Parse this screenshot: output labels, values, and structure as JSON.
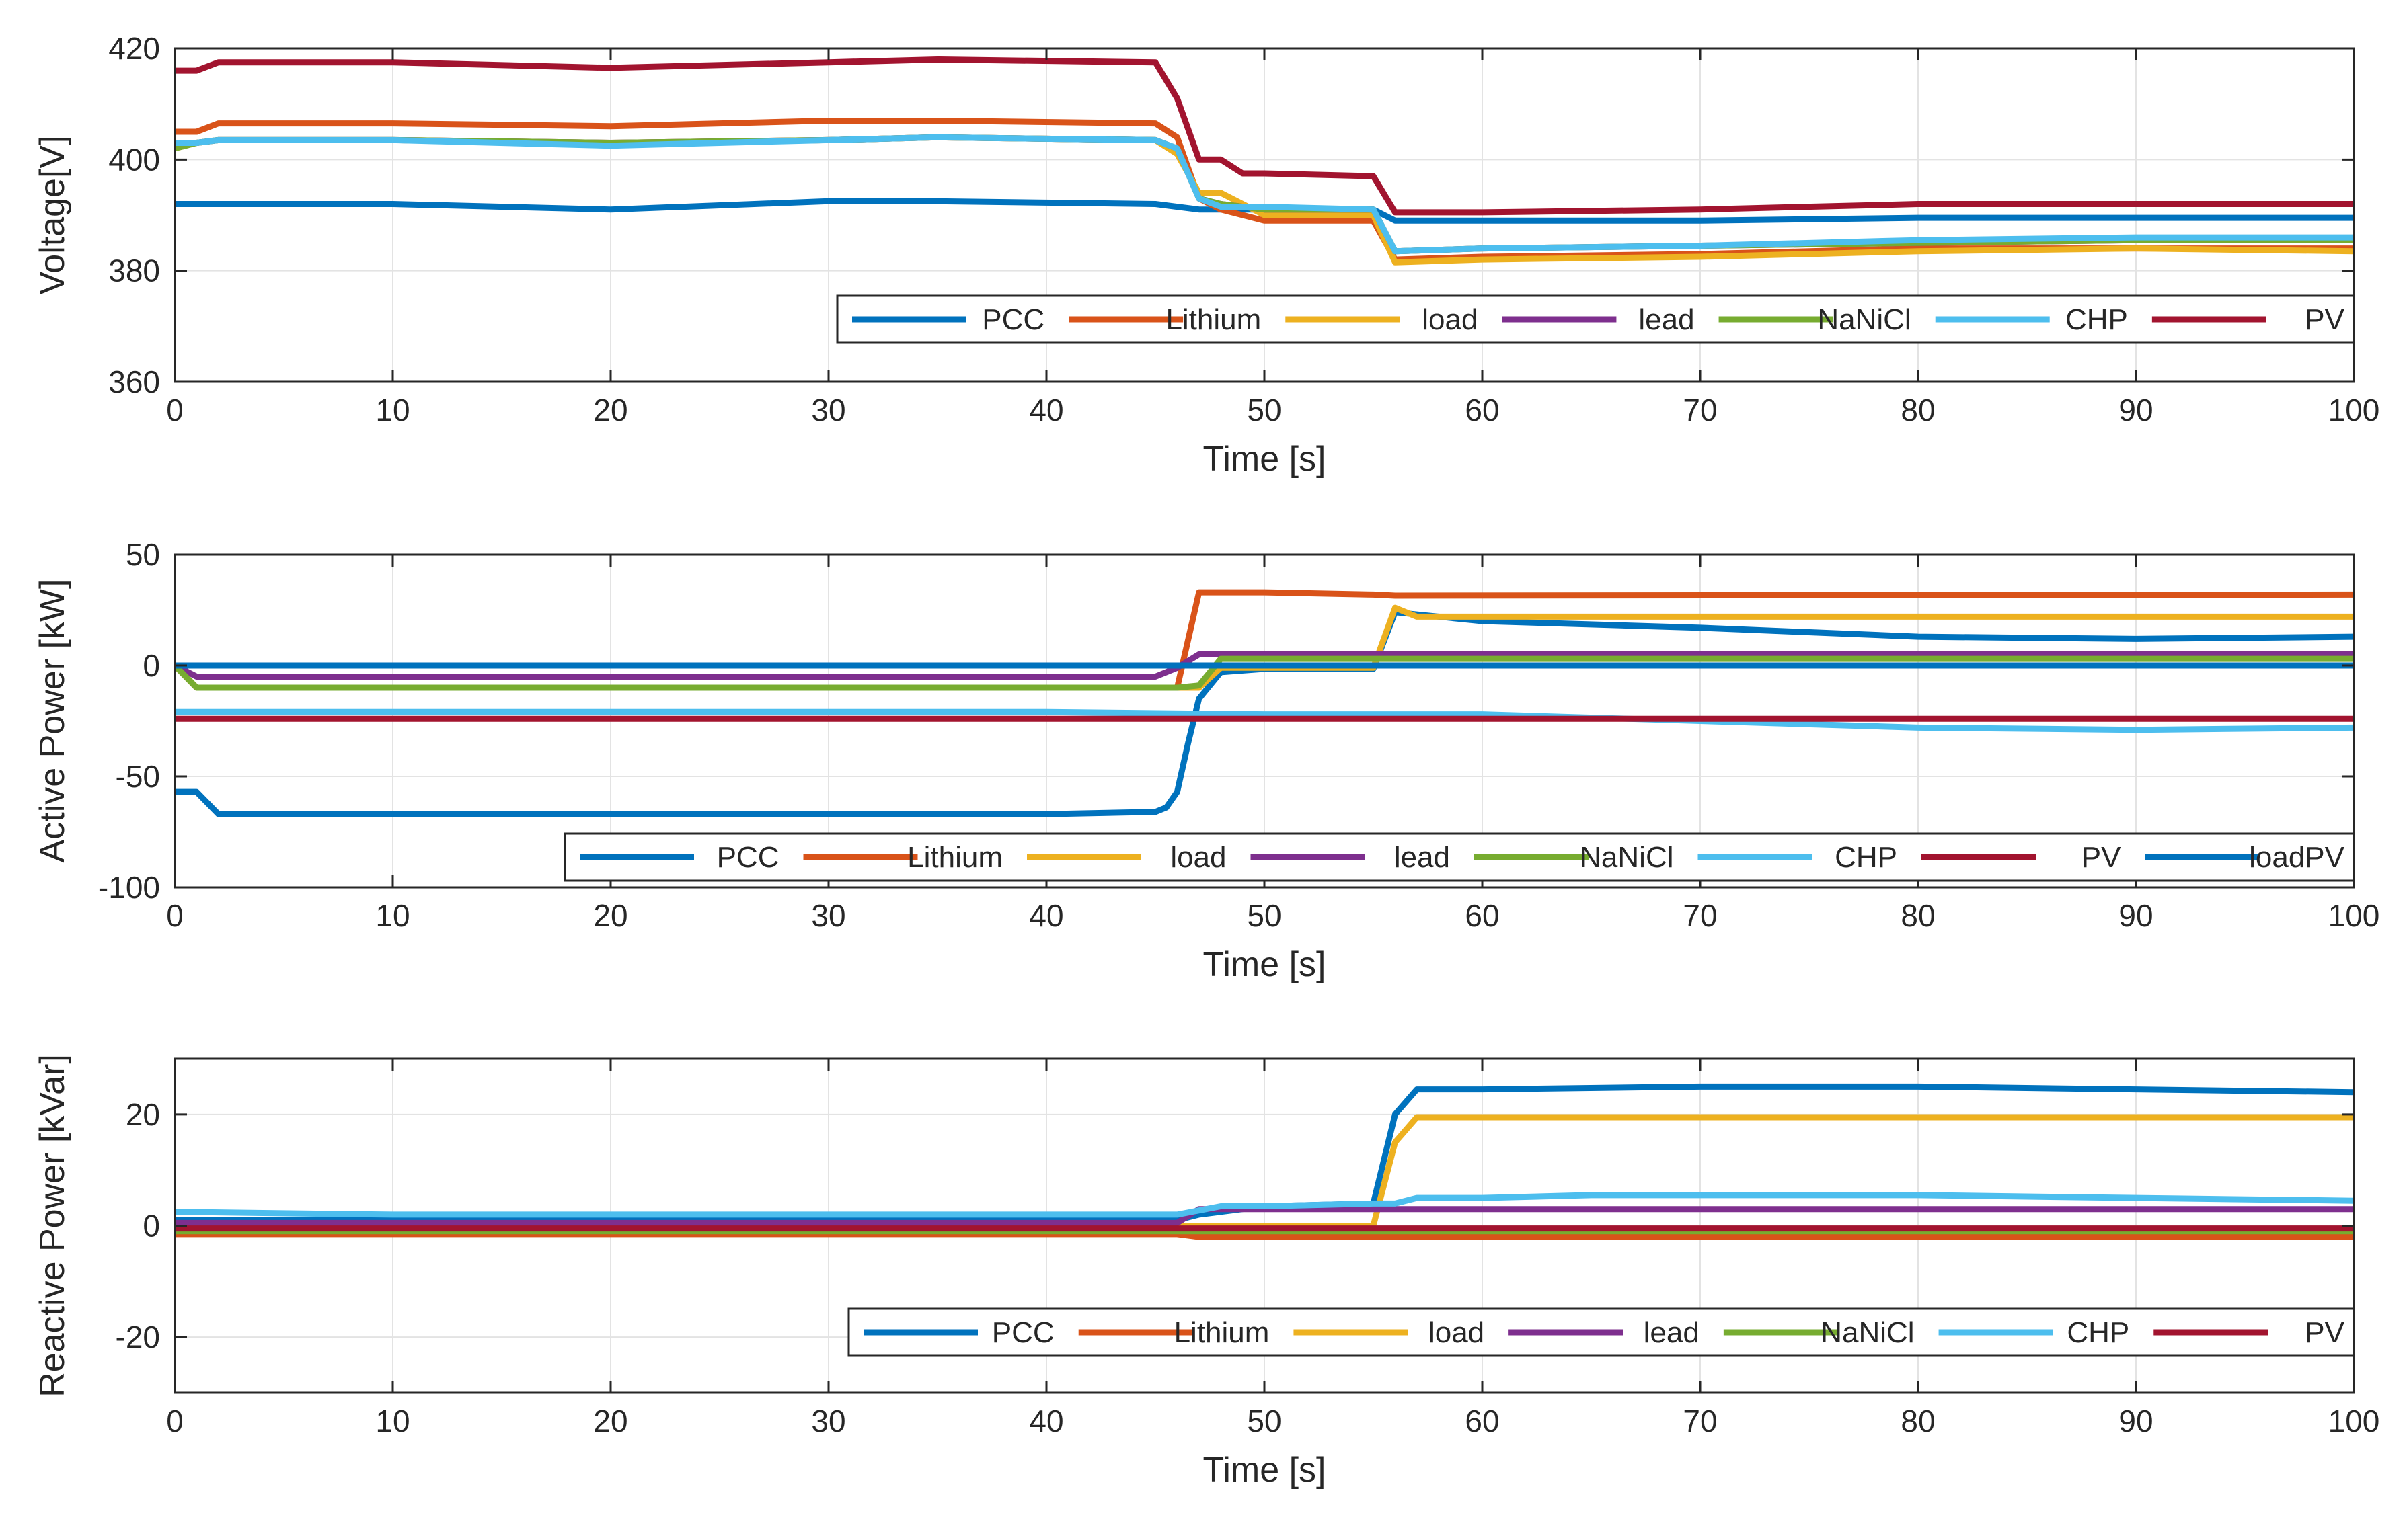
{
  "chart_data": [
    {
      "type": "line",
      "xlabel": "Time [s]",
      "ylabel": "Voltage[V]",
      "xlim": [
        0,
        100
      ],
      "ylim": [
        360,
        420
      ],
      "xticks": [
        0,
        10,
        20,
        30,
        40,
        50,
        60,
        70,
        80,
        90,
        100
      ],
      "yticks": [
        360,
        380,
        400,
        420
      ],
      "grid": true,
      "legend_position": "bottom-right",
      "legend_columns": 7,
      "series": [
        {
          "name": "PCC",
          "color": "#0072BD",
          "x": [
            0,
            10,
            20,
            30,
            35,
            45,
            46,
            47,
            48,
            50,
            55,
            56,
            60,
            70,
            80,
            90,
            100
          ],
          "y": [
            392,
            392,
            391,
            392.5,
            392.5,
            392,
            391.5,
            391,
            391,
            391,
            391,
            389,
            389,
            389,
            389.5,
            389.5,
            389.5
          ]
        },
        {
          "name": "Lithium",
          "color": "#D95319",
          "x": [
            0,
            1,
            2,
            10,
            20,
            30,
            35,
            45,
            46,
            47,
            48,
            50,
            55,
            56,
            60,
            70,
            80,
            90,
            100
          ],
          "y": [
            405,
            405,
            406.5,
            406.5,
            406,
            407,
            407,
            406.5,
            404,
            393,
            391,
            389,
            389,
            382,
            382.5,
            383,
            384,
            384,
            384
          ]
        },
        {
          "name": "load",
          "color": "#EDB120",
          "x": [
            0,
            1,
            2,
            10,
            20,
            30,
            35,
            45,
            46,
            47,
            48,
            50,
            55,
            56,
            60,
            70,
            80,
            90,
            100
          ],
          "y": [
            402,
            403,
            403.5,
            403.5,
            403,
            403.5,
            404,
            403.5,
            401,
            394,
            394,
            390,
            390,
            381.5,
            382,
            382.5,
            383.5,
            384,
            383.5
          ]
        },
        {
          "name": "lead",
          "color": "#7E2F8E",
          "x": [
            0,
            1,
            2,
            10,
            20,
            30,
            35,
            45,
            46,
            47,
            48,
            50,
            55,
            56,
            60,
            70,
            80,
            90,
            100
          ],
          "y": [
            402.5,
            403,
            403.5,
            403.5,
            403,
            403.5,
            404,
            403.5,
            402,
            393,
            392,
            391,
            391,
            383.5,
            384,
            384.5,
            385,
            385.5,
            385.5
          ]
        },
        {
          "name": "NaNiCl",
          "color": "#77AC30",
          "x": [
            0,
            1,
            2,
            10,
            20,
            30,
            35,
            45,
            46,
            47,
            48,
            50,
            55,
            56,
            60,
            70,
            80,
            90,
            100
          ],
          "y": [
            402,
            403,
            403.5,
            403.5,
            403,
            403.5,
            404,
            403.5,
            402,
            393,
            392,
            391,
            391,
            383.5,
            384,
            384.5,
            385,
            385.5,
            385.5
          ]
        },
        {
          "name": "CHP",
          "color": "#4DBEEE",
          "x": [
            0,
            1,
            2,
            10,
            20,
            30,
            35,
            45,
            46,
            47,
            48,
            50,
            55,
            56,
            60,
            70,
            80,
            90,
            100
          ],
          "y": [
            403,
            403,
            403.5,
            403.5,
            402.5,
            403.5,
            404,
            403.5,
            402,
            393,
            391.5,
            391.5,
            391,
            383.5,
            384,
            384.5,
            385.5,
            386,
            386
          ]
        },
        {
          "name": "PV",
          "color": "#A2142F",
          "x": [
            0,
            1,
            2,
            10,
            20,
            30,
            35,
            45,
            46,
            47,
            48,
            49,
            50,
            55,
            56,
            60,
            70,
            80,
            90,
            100
          ],
          "y": [
            416,
            416,
            417.5,
            417.5,
            416.5,
            417.5,
            418,
            417.5,
            411,
            400,
            400,
            397.5,
            397.5,
            397,
            390.5,
            390.5,
            391,
            392,
            392,
            392
          ]
        }
      ]
    },
    {
      "type": "line",
      "xlabel": "Time [s]",
      "ylabel": "Active Power [kW]",
      "xlim": [
        0,
        100
      ],
      "ylim": [
        -100,
        50
      ],
      "xticks": [
        0,
        10,
        20,
        30,
        40,
        50,
        60,
        70,
        80,
        90,
        100
      ],
      "yticks": [
        -100,
        -50,
        0,
        50
      ],
      "grid": true,
      "legend_position": "bottom",
      "legend_columns": 8,
      "series": [
        {
          "name": "PCC",
          "color": "#0072BD",
          "x": [
            0,
            1,
            2,
            10,
            20,
            30,
            40,
            45,
            45.5,
            46,
            46.5,
            47,
            48,
            50,
            55,
            56,
            60,
            70,
            80,
            90,
            100
          ],
          "y": [
            -57,
            -57,
            -67,
            -67,
            -67,
            -67,
            -67,
            -66,
            -64,
            -57,
            -35,
            -15,
            -3,
            -1.5,
            -1.5,
            24,
            20,
            17,
            13,
            12,
            13
          ]
        },
        {
          "name": "Lithium",
          "color": "#D95319",
          "x": [
            0,
            1,
            45,
            46,
            47,
            50,
            55,
            56,
            100
          ],
          "y": [
            0,
            -10,
            -10,
            -10,
            33,
            33,
            32,
            31.5,
            32
          ]
        },
        {
          "name": "load",
          "color": "#EDB120",
          "x": [
            0,
            1,
            47,
            48,
            55,
            56,
            57,
            60,
            100
          ],
          "y": [
            0,
            -10,
            -10,
            -1,
            -1,
            26,
            22,
            22,
            22
          ]
        },
        {
          "name": "lead",
          "color": "#7E2F8E",
          "x": [
            0,
            1,
            45,
            46,
            47,
            100
          ],
          "y": [
            0,
            -5,
            -5,
            -1,
            5,
            5
          ]
        },
        {
          "name": "NaNiCl",
          "color": "#77AC30",
          "x": [
            0,
            1,
            46,
            47,
            48,
            100
          ],
          "y": [
            0,
            -10,
            -10,
            -9,
            3,
            3
          ]
        },
        {
          "name": "CHP",
          "color": "#4DBEEE",
          "x": [
            0,
            10,
            40,
            50,
            60,
            70,
            80,
            90,
            100
          ],
          "y": [
            -21,
            -21,
            -21,
            -22,
            -22,
            -25,
            -28,
            -29,
            -28
          ]
        },
        {
          "name": "PV",
          "color": "#A2142F",
          "x": [
            0,
            100
          ],
          "y": [
            -24,
            -24
          ]
        },
        {
          "name": "loadPV",
          "color": "#0072BD",
          "x": [
            0,
            100
          ],
          "y": [
            0,
            0
          ]
        }
      ]
    },
    {
      "type": "line",
      "xlabel": "Time [s]",
      "ylabel": "Reactive Power [kVar]",
      "xlim": [
        0,
        100
      ],
      "ylim": [
        -30,
        30
      ],
      "xticks": [
        0,
        10,
        20,
        30,
        40,
        50,
        60,
        70,
        80,
        90,
        100
      ],
      "yticks": [
        -20,
        0,
        20
      ],
      "grid": true,
      "legend_position": "bottom-right",
      "legend_columns": 7,
      "series": [
        {
          "name": "PCC",
          "color": "#0072BD",
          "x": [
            0,
            10,
            40,
            46,
            47,
            50,
            55,
            56,
            57,
            60,
            70,
            80,
            90,
            100
          ],
          "y": [
            1,
            1,
            1,
            1,
            2,
            3.5,
            4,
            20,
            24.5,
            24.5,
            25,
            25,
            24.5,
            24
          ]
        },
        {
          "name": "Lithium",
          "color": "#D95319",
          "x": [
            0,
            46,
            47,
            100
          ],
          "y": [
            -1.5,
            -1.5,
            -2,
            -2
          ]
        },
        {
          "name": "load",
          "color": "#EDB120",
          "x": [
            0,
            55,
            56,
            57,
            60,
            70,
            80,
            90,
            100
          ],
          "y": [
            0,
            0,
            15,
            19.5,
            19.5,
            19.5,
            19.5,
            19.5,
            19.5
          ]
        },
        {
          "name": "lead",
          "color": "#7E2F8E",
          "x": [
            0,
            46,
            47,
            100
          ],
          "y": [
            0.5,
            0.5,
            3,
            3
          ]
        },
        {
          "name": "NaNiCl",
          "color": "#77AC30",
          "x": [
            0,
            100
          ],
          "y": [
            -1,
            -1
          ]
        },
        {
          "name": "CHP",
          "color": "#4DBEEE",
          "x": [
            0,
            10,
            40,
            46,
            48,
            50,
            55,
            56,
            57,
            60,
            65,
            80,
            90,
            100
          ],
          "y": [
            2.5,
            2,
            2,
            2,
            3.5,
            3.5,
            4,
            4,
            5,
            5,
            5.5,
            5.5,
            5,
            4.5
          ]
        },
        {
          "name": "PV",
          "color": "#A2142F",
          "x": [
            0,
            100
          ],
          "y": [
            -0.5,
            -0.5
          ]
        }
      ]
    }
  ]
}
